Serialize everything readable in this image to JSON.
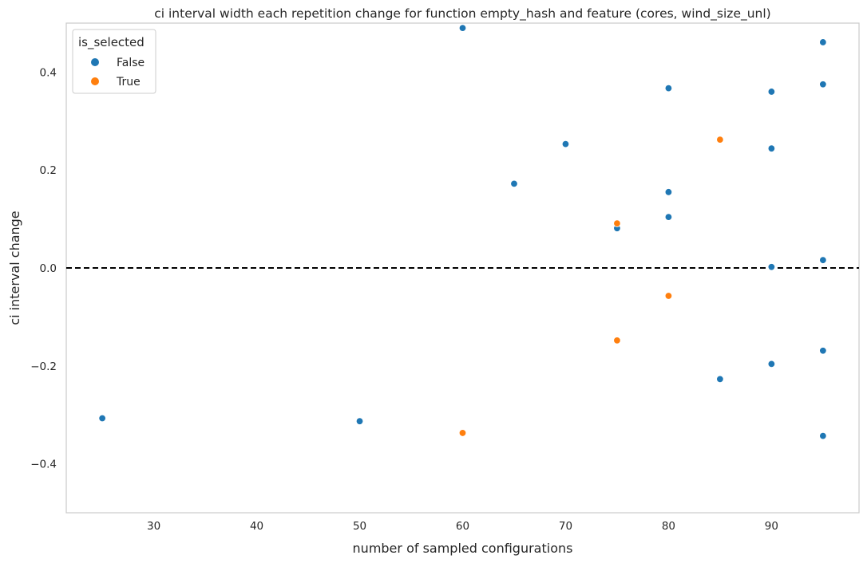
{
  "chart_data": {
    "type": "scatter",
    "title": "ci interval width each repetition change for function empty_hash and feature (cores, wind_size_unl)",
    "xlabel": "number of sampled configurations",
    "ylabel": "ci interval change",
    "xlim": [
      21.5,
      98.5
    ],
    "ylim": [
      -0.5,
      0.5
    ],
    "xticks": [
      30,
      40,
      50,
      60,
      70,
      80,
      90
    ],
    "xtick_labels": [
      "30",
      "40",
      "50",
      "60",
      "70",
      "80",
      "90"
    ],
    "yticks": [
      -0.4,
      -0.2,
      0.0,
      0.2,
      0.4
    ],
    "ytick_labels": [
      "−0.4",
      "−0.2",
      "0.0",
      "0.2",
      "0.4"
    ],
    "grid": false,
    "reference_line": {
      "y": 0.0,
      "style": "dashed",
      "color": "#000000"
    },
    "legend": {
      "title": "is_selected",
      "placement": "top-left",
      "entries": [
        {
          "label": "False",
          "color": "#1f77b4"
        },
        {
          "label": "True",
          "color": "#ff7f0e"
        }
      ]
    },
    "series": [
      {
        "name": "False",
        "color": "#1f77b4",
        "points": [
          {
            "x": 25,
            "y": -0.307
          },
          {
            "x": 50,
            "y": -0.313
          },
          {
            "x": 60,
            "y": 0.49
          },
          {
            "x": 65,
            "y": 0.172
          },
          {
            "x": 70,
            "y": 0.253
          },
          {
            "x": 75,
            "y": 0.081
          },
          {
            "x": 80,
            "y": 0.367
          },
          {
            "x": 80,
            "y": 0.155
          },
          {
            "x": 80,
            "y": 0.104
          },
          {
            "x": 85,
            "y": -0.227
          },
          {
            "x": 90,
            "y": 0.36
          },
          {
            "x": 90,
            "y": 0.244
          },
          {
            "x": 90,
            "y": 0.002
          },
          {
            "x": 90,
            "y": -0.196
          },
          {
            "x": 95,
            "y": 0.461
          },
          {
            "x": 95,
            "y": 0.375
          },
          {
            "x": 95,
            "y": 0.016
          },
          {
            "x": 95,
            "y": -0.169
          },
          {
            "x": 95,
            "y": -0.343
          }
        ]
      },
      {
        "name": "True",
        "color": "#ff7f0e",
        "points": [
          {
            "x": 60,
            "y": -0.337
          },
          {
            "x": 75,
            "y": 0.091
          },
          {
            "x": 75,
            "y": -0.148
          },
          {
            "x": 80,
            "y": -0.057
          },
          {
            "x": 85,
            "y": 0.262
          }
        ]
      }
    ]
  }
}
